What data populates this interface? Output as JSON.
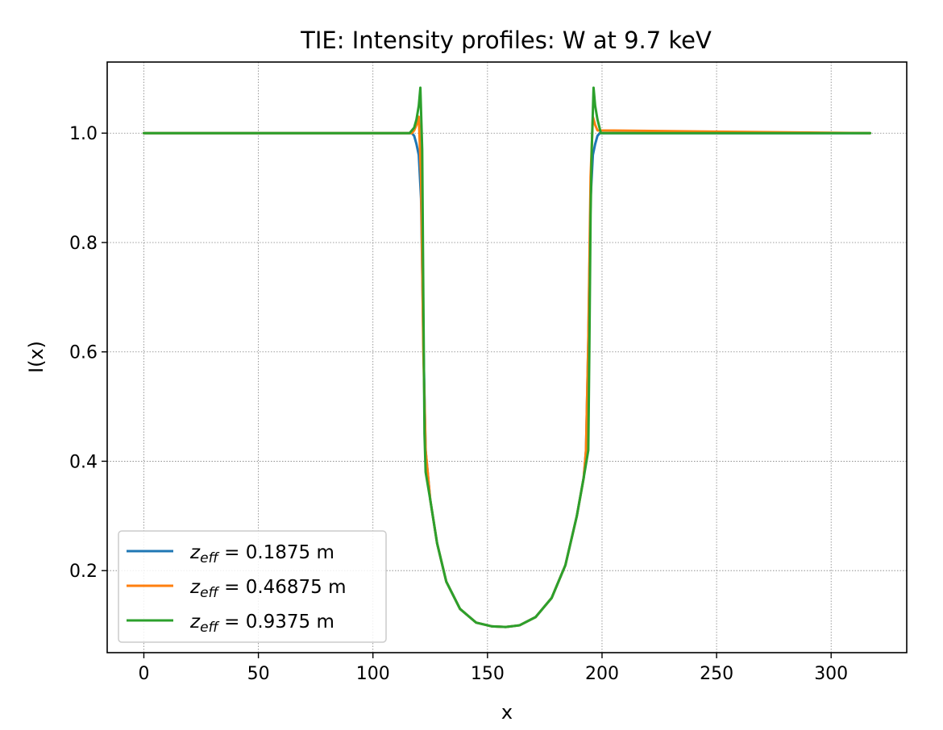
{
  "chart_data": {
    "type": "line",
    "title": "TIE: Intensity profiles: W at 9.7 keV",
    "xlabel": "x",
    "ylabel": "I(x)",
    "xlim": [
      -16,
      333
    ],
    "ylim": [
      0.05,
      1.13
    ],
    "x_ticks": [
      0,
      50,
      100,
      150,
      200,
      250,
      300
    ],
    "y_ticks": [
      0.2,
      0.4,
      0.6,
      0.8,
      1.0
    ],
    "x_tick_labels": [
      "0",
      "50",
      "100",
      "150",
      "200",
      "250",
      "300"
    ],
    "y_tick_labels": [
      "0.2",
      "0.4",
      "0.6",
      "0.8",
      "1.0"
    ],
    "grid": true,
    "legend_position": "lower-left",
    "legend_symbol": "z",
    "legend_subscript": "eff",
    "series": [
      {
        "name": "z_eff = 0.1875 m",
        "label_value": " = 0.1875 m",
        "color": "#1f77b4",
        "x": [
          0,
          116,
          117,
          118,
          119,
          120,
          121,
          122,
          123,
          125,
          128,
          132,
          138,
          145,
          152,
          158,
          164,
          171,
          178,
          184,
          189,
          192,
          193,
          194,
          195,
          196,
          197,
          198,
          199,
          317
        ],
        "y": [
          1.0,
          1.0,
          1.0,
          0.995,
          0.98,
          0.96,
          0.88,
          0.62,
          0.42,
          0.33,
          0.25,
          0.18,
          0.13,
          0.105,
          0.098,
          0.097,
          0.1,
          0.115,
          0.15,
          0.21,
          0.3,
          0.37,
          0.42,
          0.62,
          0.88,
          0.96,
          0.98,
          0.995,
          1.0,
          1.0
        ]
      },
      {
        "name": "z_eff = 0.46875 m",
        "label_value": " = 0.46875 m",
        "color": "#ff7f0e",
        "x": [
          0,
          117,
          118,
          119,
          120,
          121,
          122,
          123,
          125,
          128,
          132,
          138,
          145,
          152,
          158,
          164,
          171,
          178,
          184,
          189,
          192,
          193,
          194,
          195,
          196,
          197,
          198,
          317
        ],
        "y": [
          1.0,
          1.0,
          1.005,
          1.015,
          1.03,
          0.92,
          0.6,
          0.42,
          0.33,
          0.25,
          0.18,
          0.13,
          0.105,
          0.098,
          0.097,
          0.1,
          0.115,
          0.15,
          0.21,
          0.3,
          0.37,
          0.42,
          0.62,
          0.92,
          1.03,
          1.015,
          1.005,
          1.0
        ]
      },
      {
        "name": "z_eff = 0.9375 m",
        "label_value": " = 0.9375 m",
        "color": "#2ca02c",
        "x": [
          0,
          116,
          118,
          119,
          120,
          120.7,
          121.5,
          122,
          122.5,
          123,
          125,
          128,
          132,
          138,
          145,
          152,
          158,
          164,
          171,
          178,
          184,
          189,
          192,
          194,
          194.5,
          195,
          195.5,
          196.3,
          197,
          198,
          199.5,
          317
        ],
        "y": [
          1.0,
          1.0,
          1.01,
          1.025,
          1.05,
          1.083,
          0.97,
          0.7,
          0.45,
          0.38,
          0.33,
          0.25,
          0.18,
          0.13,
          0.105,
          0.098,
          0.097,
          0.1,
          0.115,
          0.15,
          0.21,
          0.3,
          0.37,
          0.42,
          0.62,
          0.85,
          0.97,
          1.083,
          1.05,
          1.025,
          1.0,
          1.0
        ]
      }
    ]
  }
}
